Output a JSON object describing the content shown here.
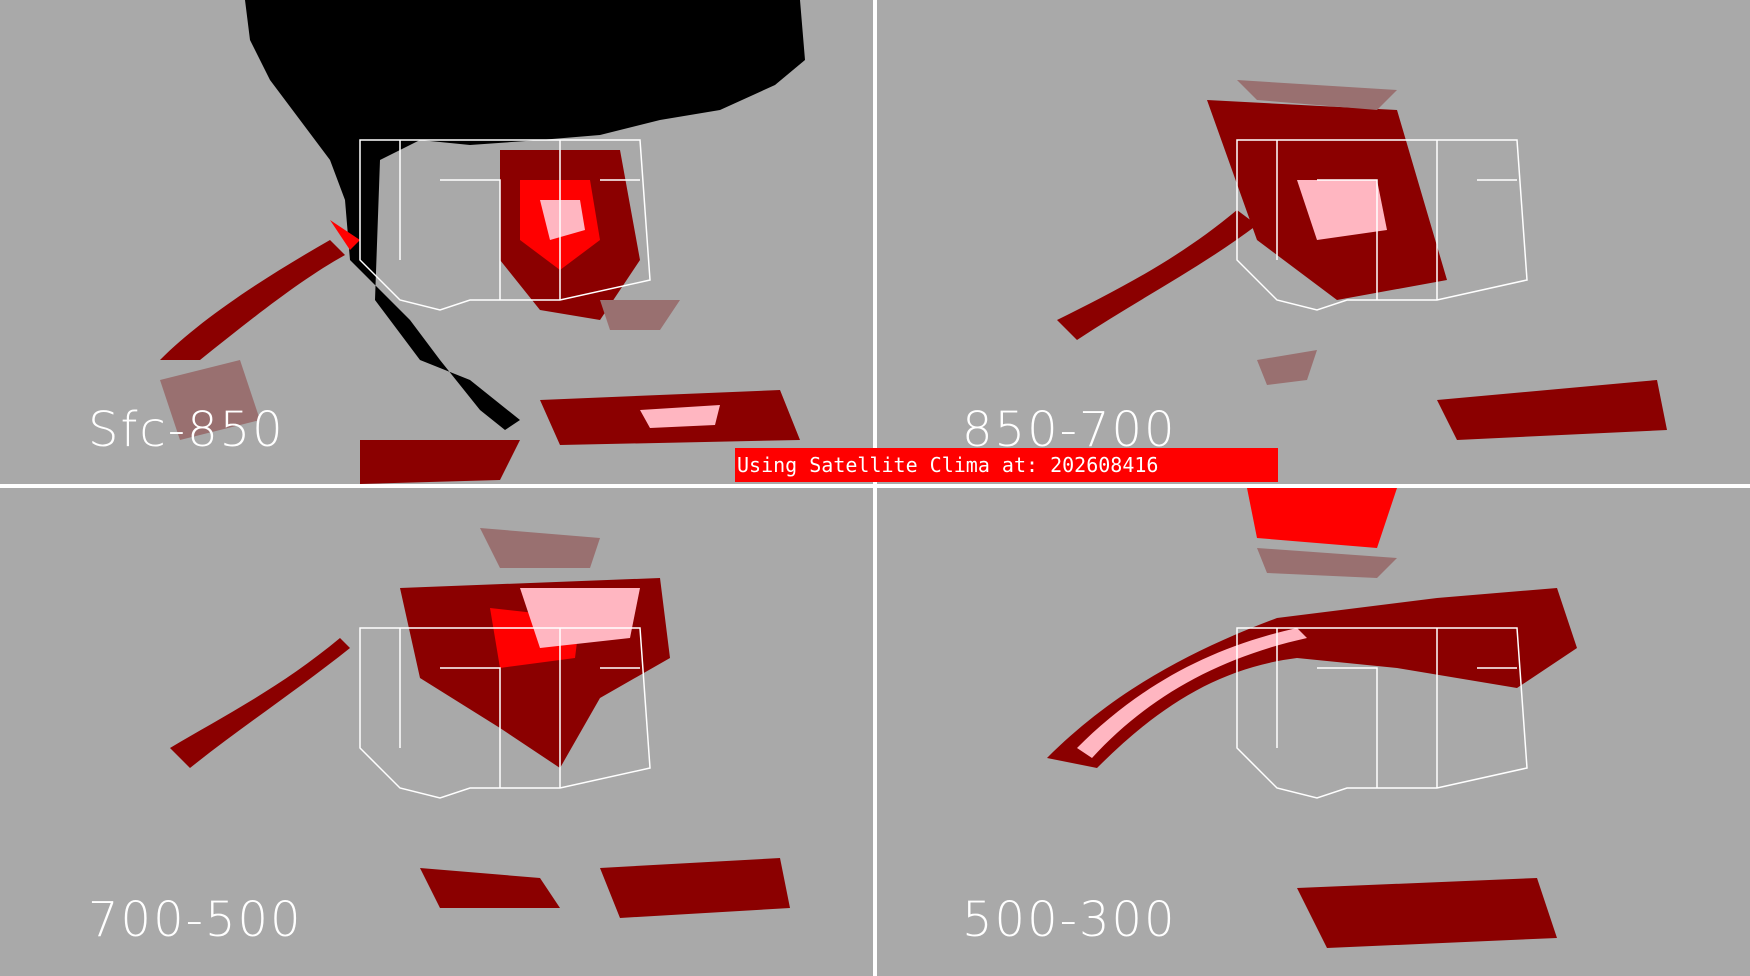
{
  "banner": {
    "text": "Using Satellite Clima at: 202608416",
    "color": "#ff0000"
  },
  "panels": [
    {
      "id": "sfc-850",
      "label": "Sfc-850"
    },
    {
      "id": "850-700",
      "label": "850-700"
    },
    {
      "id": "700-500",
      "label": "700-500"
    },
    {
      "id": "500-300",
      "label": "500-300"
    }
  ],
  "colors": {
    "background_gray": "#a9a9a9",
    "dark_red": "#8b0000",
    "red": "#ff0000",
    "pink": "#ffb6c1",
    "mauve": "#997070",
    "black": "#000000",
    "outline_white": "#ffffff"
  }
}
